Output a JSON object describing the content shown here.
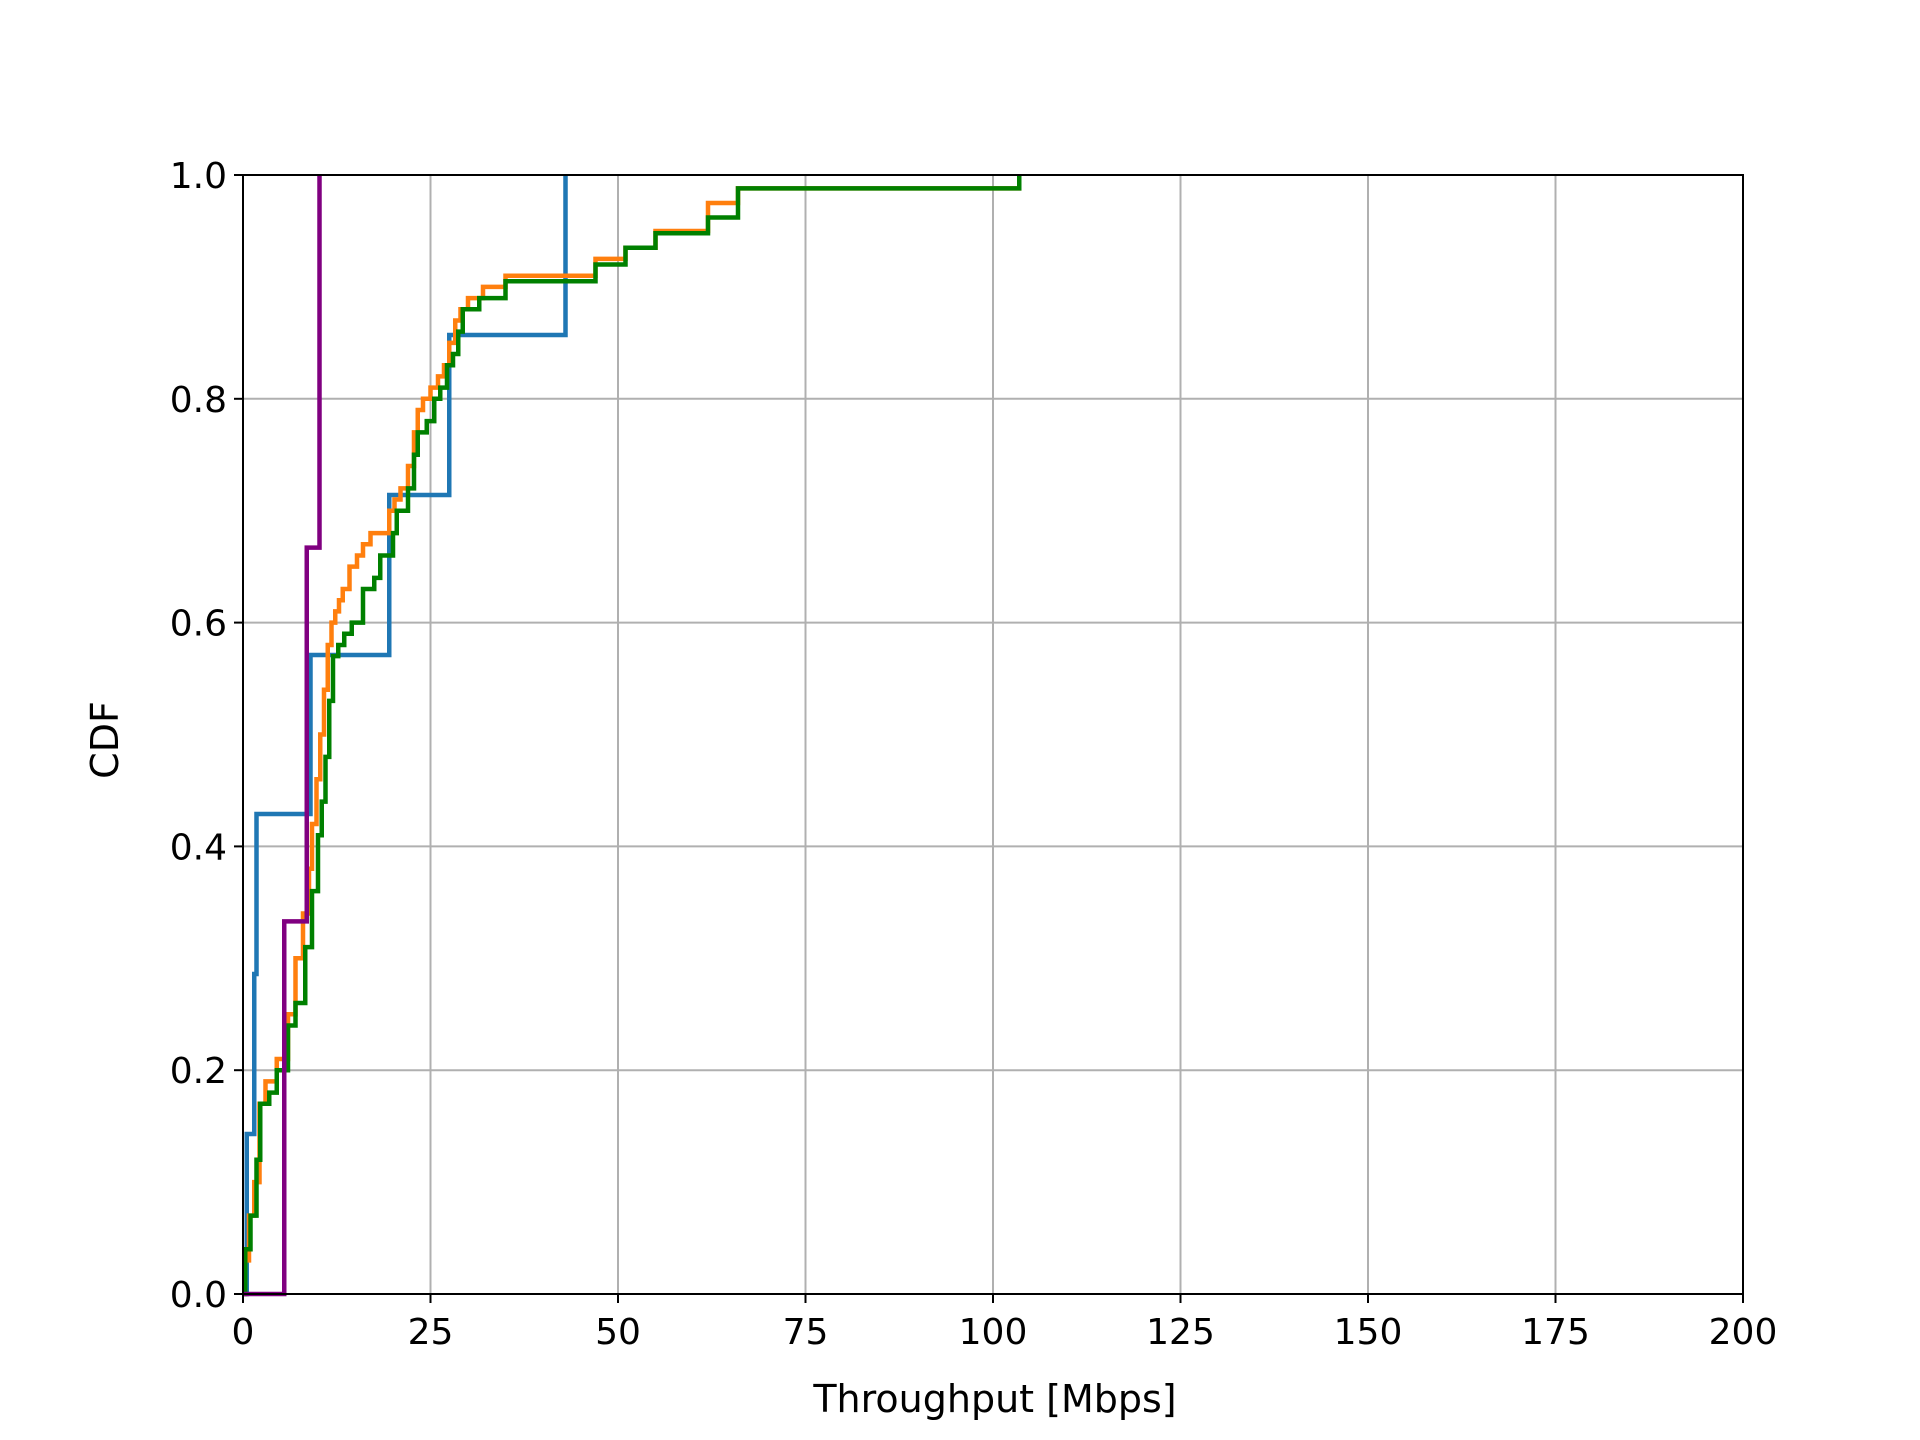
{
  "chart_data": {
    "type": "line",
    "title": "",
    "xlabel": "Throughput [Mbps]",
    "ylabel": "CDF",
    "xlim": [
      0,
      200
    ],
    "ylim": [
      0,
      1
    ],
    "xticks": [
      0,
      25,
      50,
      75,
      100,
      125,
      150,
      175,
      200
    ],
    "xtick_labels": [
      "0",
      "25",
      "50",
      "75",
      "100",
      "125",
      "150",
      "175",
      "200"
    ],
    "yticks": [
      0,
      0.2,
      0.4,
      0.6,
      0.8,
      1.0
    ],
    "ytick_labels": [
      "0.0",
      "0.2",
      "0.4",
      "0.6",
      "0.8",
      "1.0"
    ],
    "grid": true,
    "legend": "none",
    "step": "post",
    "series": [
      {
        "color": "#1f77b4",
        "x": [
          0,
          0.5,
          1.5,
          1.8,
          9,
          19.5,
          27.5,
          43,
          43
        ],
        "y": [
          0,
          0.143,
          0.286,
          0.429,
          0.571,
          0.714,
          0.857,
          1.0,
          1.0
        ]
      },
      {
        "color": "#ff7f0e",
        "x": [
          0,
          0.3,
          0.8,
          1.5,
          2.2,
          3,
          4.5,
          6,
          7,
          8,
          8.8,
          9.2,
          9.8,
          10.3,
          10.8,
          11.3,
          11.8,
          12.3,
          12.8,
          13.3,
          14.2,
          15.2,
          16,
          17,
          18,
          19.5,
          20.2,
          21,
          22,
          22.8,
          23.3,
          24,
          25,
          26,
          26.8,
          27.5,
          28.3,
          29,
          30,
          32,
          35,
          47,
          51,
          55,
          62,
          66,
          103.5,
          103.5
        ],
        "y": [
          0,
          0.03,
          0.07,
          0.1,
          0.17,
          0.19,
          0.21,
          0.25,
          0.3,
          0.34,
          0.38,
          0.42,
          0.46,
          0.5,
          0.54,
          0.58,
          0.6,
          0.61,
          0.62,
          0.63,
          0.65,
          0.66,
          0.67,
          0.68,
          0.68,
          0.7,
          0.71,
          0.72,
          0.74,
          0.77,
          0.79,
          0.8,
          0.81,
          0.82,
          0.83,
          0.85,
          0.87,
          0.88,
          0.89,
          0.9,
          0.91,
          0.925,
          0.935,
          0.95,
          0.975,
          0.988,
          1.0,
          1.0
        ]
      },
      {
        "color": "#008000",
        "x": [
          0,
          0.3,
          1,
          1.8,
          2.3,
          3.5,
          4.5,
          6,
          7,
          8.3,
          9.2,
          10,
          10.5,
          11,
          11.5,
          12,
          12.7,
          13.5,
          14.5,
          16,
          17.5,
          18.3,
          20,
          20.5,
          22,
          22.8,
          23.3,
          24.5,
          25.5,
          26.3,
          27.2,
          28,
          28.7,
          29.3,
          31.5,
          35,
          47,
          51,
          55,
          62,
          66,
          103.5,
          103.5
        ],
        "y": [
          0,
          0.04,
          0.07,
          0.12,
          0.17,
          0.18,
          0.2,
          0.24,
          0.26,
          0.31,
          0.36,
          0.41,
          0.44,
          0.48,
          0.53,
          0.57,
          0.58,
          0.59,
          0.6,
          0.63,
          0.64,
          0.66,
          0.68,
          0.7,
          0.72,
          0.75,
          0.77,
          0.78,
          0.8,
          0.81,
          0.83,
          0.84,
          0.86,
          0.88,
          0.89,
          0.905,
          0.92,
          0.935,
          0.948,
          0.962,
          0.988,
          1.0,
          1.0
        ]
      },
      {
        "color": "#800080",
        "x": [
          0,
          5.5,
          8.5,
          10.2,
          10.2
        ],
        "y": [
          0,
          0.333,
          0.667,
          1.0,
          1.0
        ]
      }
    ]
  }
}
